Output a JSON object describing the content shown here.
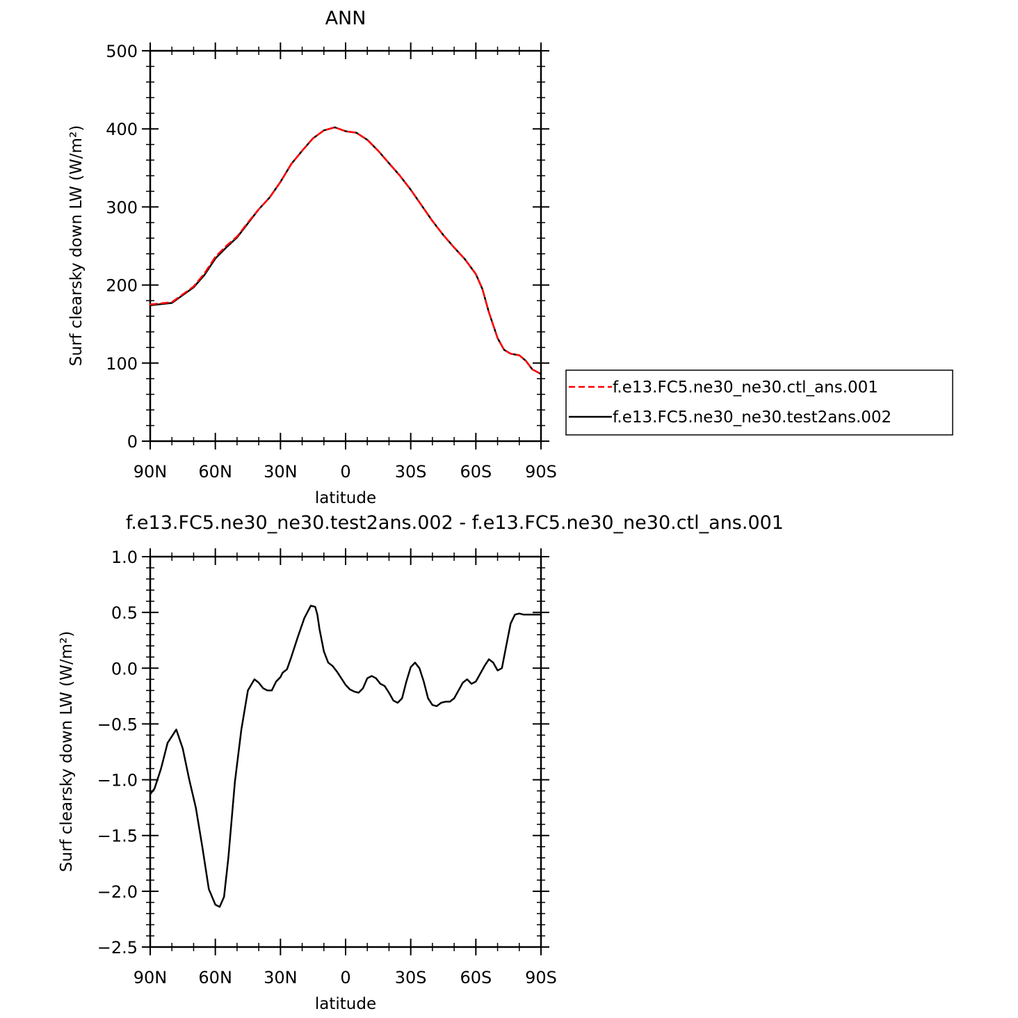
{
  "chart_data": [
    {
      "type": "line",
      "title": "ANN",
      "xlabel": "latitude",
      "ylabel": "Surf clearsky down LW (W/m²)",
      "xlim": [
        90,
        -90
      ],
      "ylim": [
        0,
        500
      ],
      "yticks": [
        "0",
        "100",
        "200",
        "300",
        "400",
        "500"
      ],
      "ytick_values": [
        0,
        100,
        200,
        300,
        400,
        500
      ],
      "xticks": [
        "90N",
        "60N",
        "30N",
        "0",
        "30S",
        "60S",
        "90S"
      ],
      "xtick_values": [
        90,
        60,
        30,
        0,
        -30,
        -60,
        -90
      ],
      "grid": false,
      "legend_position": "right",
      "series": [
        {
          "name": "f.e13.FC5.ne30_ne30.ctl_ans.001",
          "color": "#ff0000",
          "style": "dashed",
          "x": [
            90,
            80,
            70,
            65,
            60,
            55,
            50,
            45,
            40,
            35,
            30,
            25,
            20,
            15,
            10,
            5,
            0,
            -5,
            -10,
            -15,
            -20,
            -25,
            -30,
            -35,
            -40,
            -45,
            -50,
            -55,
            -60,
            -63,
            -66,
            -70,
            -73,
            -76,
            -80,
            -83,
            -86,
            -90
          ],
          "y": [
            175,
            178,
            198,
            215,
            236,
            250,
            262,
            280,
            297,
            312,
            332,
            355,
            372,
            388,
            398,
            402,
            397,
            395,
            386,
            372,
            356,
            340,
            322,
            302,
            282,
            264,
            248,
            233,
            214,
            195,
            165,
            132,
            117,
            112,
            110,
            103,
            92,
            86
          ]
        },
        {
          "name": "f.e13.FC5.ne30_ne30.test2ans.002",
          "color": "#000000",
          "style": "solid",
          "x": [
            90,
            80,
            70,
            65,
            60,
            55,
            50,
            45,
            40,
            35,
            30,
            25,
            20,
            15,
            10,
            5,
            0,
            -5,
            -10,
            -15,
            -20,
            -25,
            -30,
            -35,
            -40,
            -45,
            -50,
            -55,
            -60,
            -63,
            -66,
            -70,
            -73,
            -76,
            -80,
            -83,
            -86,
            -90
          ],
          "y": [
            174,
            177,
            197,
            213,
            234,
            248,
            261,
            279,
            297,
            312,
            332,
            355,
            372,
            388,
            398,
            402,
            397,
            395,
            386,
            372,
            356,
            340,
            322,
            302,
            282,
            264,
            248,
            233,
            214,
            195,
            165,
            132,
            117,
            112,
            110,
            103,
            92,
            86
          ]
        }
      ]
    },
    {
      "type": "line",
      "title": "f.e13.FC5.ne30_ne30.test2ans.002 - f.e13.FC5.ne30_ne30.ctl_ans.001",
      "xlabel": "latitude",
      "ylabel": "Surf clearsky down LW (W/m²)",
      "xlim": [
        90,
        -90
      ],
      "ylim": [
        -2.5,
        1.0
      ],
      "yticks": [
        "−2.5",
        "−2.0",
        "−1.5",
        "−1.0",
        "−0.5",
        "0.0",
        "0.5",
        "1.0"
      ],
      "ytick_values": [
        -2.5,
        -2.0,
        -1.5,
        -1.0,
        -0.5,
        0.0,
        0.5,
        1.0
      ],
      "xticks": [
        "90N",
        "60N",
        "30N",
        "0",
        "30S",
        "60S",
        "90S"
      ],
      "xtick_values": [
        90,
        60,
        30,
        0,
        -30,
        -60,
        -90
      ],
      "grid": false,
      "series": [
        {
          "color": "#000000",
          "style": "solid",
          "x": [
            90,
            88,
            85,
            82,
            78,
            75,
            72,
            69,
            66,
            63,
            60,
            58,
            56,
            54,
            51,
            48,
            45,
            42,
            40,
            38,
            36,
            34,
            32,
            30,
            29,
            27,
            25,
            22,
            19,
            16,
            14,
            13,
            12,
            10,
            8,
            6,
            4,
            2,
            0,
            -2,
            -4,
            -6,
            -8,
            -10,
            -12,
            -14,
            -16,
            -18,
            -20,
            -22,
            -24,
            -26,
            -28,
            -30,
            -32,
            -34,
            -36,
            -38,
            -40,
            -42,
            -44,
            -46,
            -48,
            -50,
            -52,
            -54,
            -56,
            -58,
            -60,
            -62,
            -64,
            -66,
            -68,
            -70,
            -72,
            -74,
            -76,
            -78,
            -80,
            -82,
            -84,
            -86,
            -88,
            -90
          ],
          "y": [
            -1.13,
            -1.08,
            -0.9,
            -0.67,
            -0.55,
            -0.72,
            -1.0,
            -1.25,
            -1.6,
            -1.98,
            -2.12,
            -2.14,
            -2.05,
            -1.7,
            -1.02,
            -0.55,
            -0.2,
            -0.1,
            -0.13,
            -0.18,
            -0.2,
            -0.2,
            -0.12,
            -0.08,
            -0.04,
            -0.01,
            0.1,
            0.28,
            0.45,
            0.56,
            0.55,
            0.48,
            0.35,
            0.15,
            0.05,
            0.02,
            -0.03,
            -0.09,
            -0.15,
            -0.19,
            -0.21,
            -0.22,
            -0.18,
            -0.09,
            -0.07,
            -0.09,
            -0.14,
            -0.16,
            -0.22,
            -0.29,
            -0.31,
            -0.27,
            -0.12,
            0.01,
            0.05,
            0.0,
            -0.12,
            -0.27,
            -0.33,
            -0.34,
            -0.31,
            -0.3,
            -0.3,
            -0.27,
            -0.2,
            -0.13,
            -0.1,
            -0.14,
            -0.12,
            -0.05,
            0.02,
            0.08,
            0.05,
            -0.02,
            0.0,
            0.2,
            0.4,
            0.48,
            0.49,
            0.48,
            0.48,
            0.48,
            0.48,
            0.48
          ]
        }
      ]
    }
  ]
}
